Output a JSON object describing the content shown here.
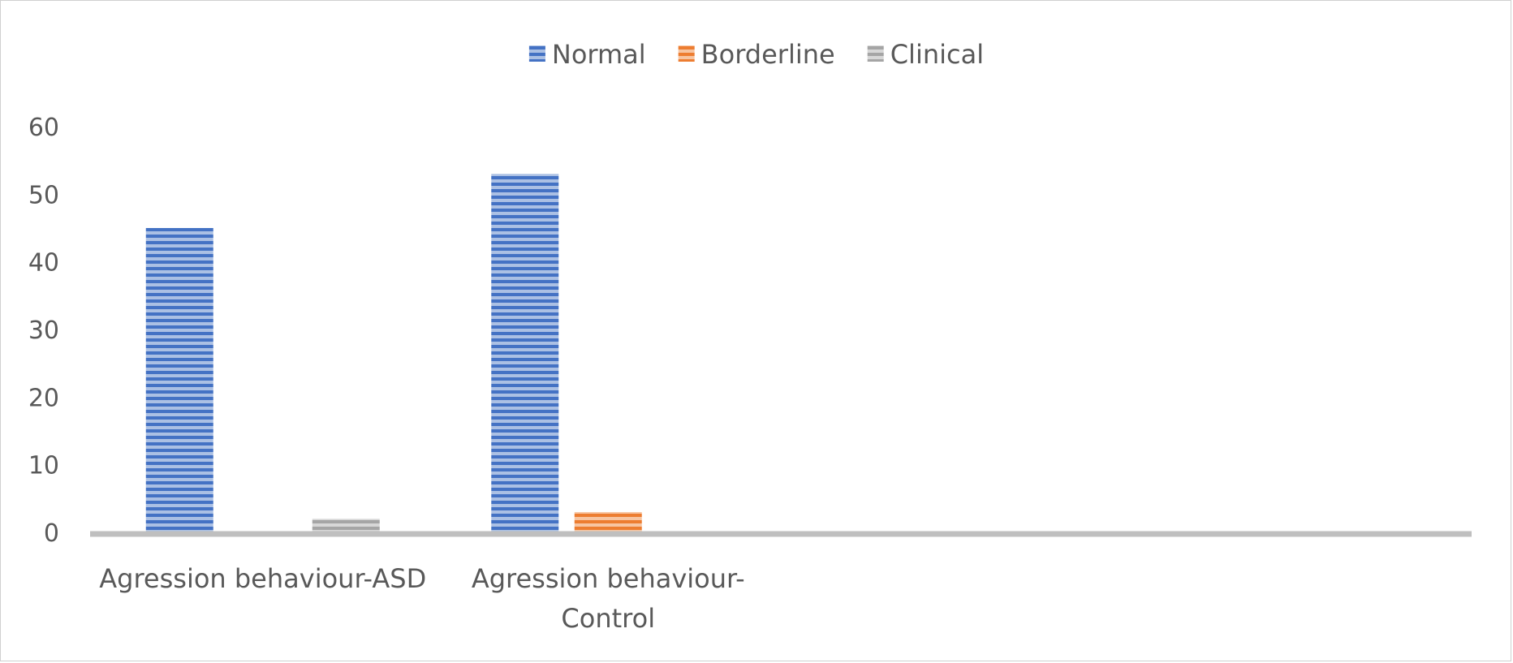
{
  "chart_data": {
    "type": "bar",
    "categories": [
      [
        "Agression behaviour-ASD"
      ],
      [
        "Agression behaviour-",
        "Control"
      ]
    ],
    "series": [
      {
        "name": "Normal",
        "values": [
          45,
          53
        ],
        "color": "#4472C4"
      },
      {
        "name": "Borderline",
        "values": [
          0,
          3
        ],
        "color": "#ED7D31"
      },
      {
        "name": "Clinical",
        "values": [
          2,
          0
        ],
        "color": "#A5A5A5"
      }
    ],
    "ylim": [
      0,
      60
    ],
    "yticks": [
      0,
      10,
      20,
      30,
      40,
      50,
      60
    ],
    "legend_position": "top-center",
    "grid": false,
    "bar_pattern": "horizontal-stripes"
  }
}
